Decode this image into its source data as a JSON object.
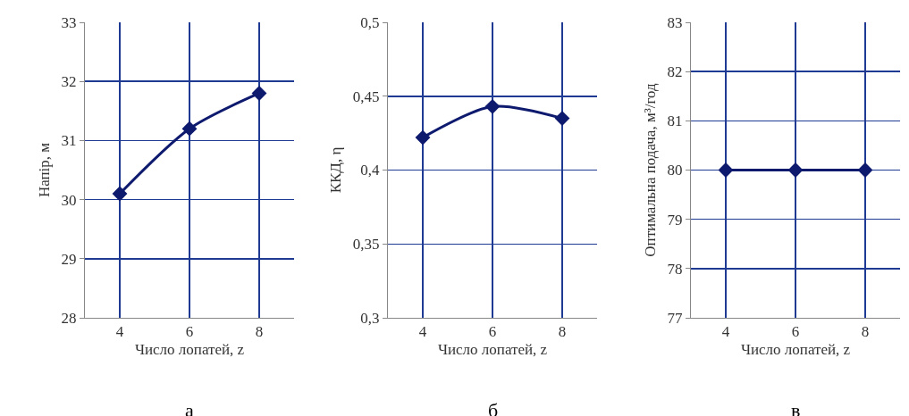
{
  "chart_data": [
    {
      "type": "line",
      "categories": [
        "4",
        "6",
        "8"
      ],
      "xlabel": "Число лопатей, z",
      "ylabel": "Напір, м",
      "values": [
        30.1,
        31.2,
        31.8
      ],
      "color": "#0d1a6e",
      "marker": "diamond",
      "line_style": "solid",
      "grid": true,
      "ylim": [
        28,
        33
      ],
      "yticks": [
        28,
        29,
        30,
        31,
        32,
        33
      ],
      "annotations": [
        "а"
      ]
    },
    {
      "type": "line",
      "categories": [
        "4",
        "6",
        "8"
      ],
      "xlabel": "Число лопатей, z",
      "ylabel": "ККД, η",
      "values": [
        0.422,
        0.443,
        0.435
      ],
      "color": "#0d1a6e",
      "marker": "diamond",
      "line_style": "solid",
      "grid": true,
      "ylim": [
        0.3,
        0.5
      ],
      "yticks": [
        {
          "value": 0.3,
          "label": "0,3"
        },
        {
          "value": 0.35,
          "label": "0,35"
        },
        {
          "value": 0.4,
          "label": "0,4"
        },
        {
          "value": 0.45,
          "label": "0,45"
        },
        {
          "value": 0.5,
          "label": "0,5"
        }
      ],
      "annotations": [
        "б"
      ]
    },
    {
      "type": "line",
      "categories": [
        "4",
        "6",
        "8"
      ],
      "xlabel": "Число лопатей, z",
      "ylabel": "Оптимальна подача, м³/год",
      "values": [
        80,
        80,
        80
      ],
      "color": "#0d1a6e",
      "marker": "diamond",
      "line_style": "solid",
      "grid": true,
      "ylim": [
        77,
        83
      ],
      "yticks": [
        77,
        78,
        79,
        80,
        81,
        82,
        83
      ],
      "annotations": [
        "в"
      ]
    }
  ]
}
